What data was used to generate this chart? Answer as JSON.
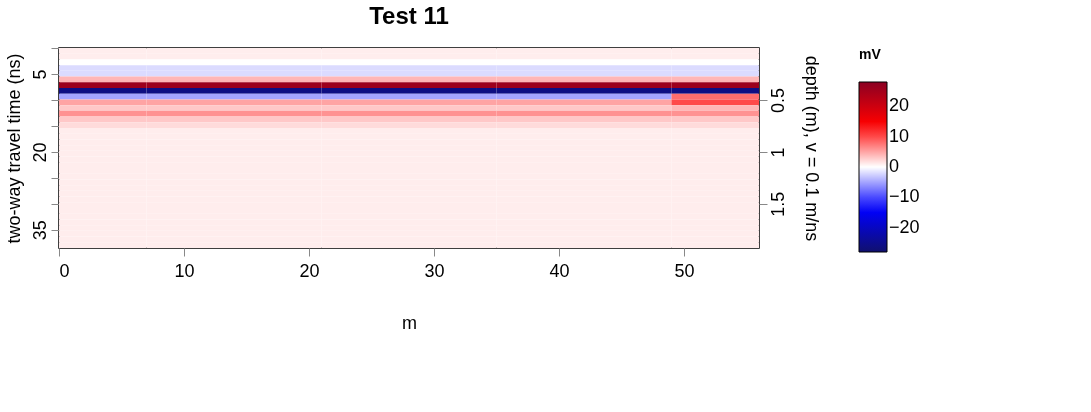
{
  "chart_data": {
    "type": "heatmap",
    "title": "Test 11",
    "xlabel": "m",
    "ylabel": "two-way travel time (ns)",
    "y2label": "depth (m),   v = 0.1 m/ns",
    "clabel": "mV",
    "x": [
      3.5,
      10.5,
      17.5,
      24.5,
      31.5,
      38.5,
      45.5,
      52.5
    ],
    "y": [
      0.55,
      1.65,
      2.75,
      3.85,
      4.95,
      6.05,
      7.15,
      8.25,
      9.35,
      10.45,
      11.55,
      12.65,
      13.75,
      14.85,
      15.95,
      17.05,
      18.15,
      19.25,
      20.35,
      21.45,
      22.55,
      23.65,
      24.75,
      25.85,
      26.95,
      28.05,
      29.15,
      30.25,
      31.35,
      32.45,
      33.55,
      34.65,
      35.75,
      36.85,
      37.95
    ],
    "xlim": [
      0,
      56
    ],
    "xticks": [
      0,
      10,
      20,
      30,
      40,
      50
    ],
    "ylim": [
      38.5,
      0
    ],
    "yticks": [
      {
        "value": 0,
        "label": null
      },
      5,
      {
        "value": 10,
        "label": null
      },
      {
        "value": 15,
        "label": null
      },
      20,
      {
        "value": 25,
        "label": null
      },
      {
        "value": 30,
        "label": null
      },
      35
    ],
    "y2lim": [
      1.925,
      0
    ],
    "y2ticks": [
      0.5,
      1,
      1.5
    ],
    "clim": [
      -28,
      28
    ],
    "cticks": [
      -20,
      -10,
      0,
      10,
      20
    ],
    "grid": false,
    "cells": [
      [
        1,
        1,
        1,
        1,
        1,
        1,
        1,
        1
      ],
      [
        1,
        1,
        1,
        1,
        1,
        1,
        1,
        1
      ],
      [
        0,
        0,
        0,
        0,
        0,
        0,
        0,
        0
      ],
      [
        -2,
        -2,
        -2,
        -2,
        -2,
        -2,
        -2,
        -2
      ],
      [
        -2,
        -2,
        -2,
        -2,
        -2,
        -2,
        -2,
        -2
      ],
      [
        4,
        4,
        4,
        4,
        4,
        4,
        4,
        4
      ],
      [
        26,
        26,
        26,
        26,
        26,
        26,
        26,
        26
      ],
      [
        -26,
        -26,
        -26,
        -26,
        -26,
        -26,
        -26,
        -26
      ],
      [
        -5,
        -5,
        -5,
        -5,
        -5,
        -5,
        -5,
        8
      ],
      [
        5,
        5,
        5,
        5,
        5,
        5,
        5,
        10
      ],
      [
        3,
        3,
        3,
        3,
        3,
        3,
        3,
        4
      ],
      [
        6,
        6,
        6,
        6,
        6,
        6,
        6,
        6
      ],
      [
        3,
        3,
        3,
        3,
        3,
        3,
        3,
        3
      ],
      [
        2,
        2,
        2,
        2,
        2,
        2,
        2,
        2
      ],
      [
        1,
        1,
        1,
        1,
        1,
        1,
        1,
        1
      ],
      [
        1,
        1,
        1,
        1,
        1,
        1,
        1,
        1
      ],
      [
        1,
        1,
        1,
        1,
        1,
        1,
        1,
        1
      ],
      [
        1,
        1,
        1,
        1,
        1,
        1,
        1,
        1
      ],
      [
        1,
        1,
        1,
        1,
        1,
        1,
        1,
        1
      ],
      [
        1,
        1,
        1,
        1,
        1,
        1,
        1,
        1
      ],
      [
        1,
        1,
        1,
        1,
        1,
        1,
        1,
        1
      ],
      [
        1,
        1,
        1,
        1,
        1,
        1,
        1,
        1
      ],
      [
        1,
        1,
        1,
        1,
        1,
        1,
        1,
        1
      ],
      [
        1,
        1,
        1,
        1,
        1,
        1,
        1,
        1
      ],
      [
        1,
        1,
        1,
        1,
        1,
        1,
        1,
        1
      ],
      [
        1,
        1,
        1,
        1,
        1,
        1,
        1,
        1
      ],
      [
        1,
        1,
        1,
        1,
        1,
        1,
        1,
        1
      ],
      [
        1,
        1,
        1,
        1,
        1,
        1,
        1,
        1
      ],
      [
        1,
        1,
        1,
        1,
        1,
        1,
        1,
        1
      ],
      [
        1,
        1,
        1,
        1,
        1,
        1,
        1,
        1
      ],
      [
        1,
        1,
        1,
        1,
        1,
        1,
        1,
        1
      ],
      [
        1,
        1,
        1,
        1,
        1,
        1,
        1,
        1
      ],
      [
        1,
        1,
        1,
        1,
        1,
        1,
        1,
        1
      ],
      [
        1,
        1,
        1,
        1,
        1,
        1,
        1,
        1
      ],
      [
        1,
        1,
        1,
        1,
        1,
        1,
        1,
        1
      ]
    ]
  }
}
